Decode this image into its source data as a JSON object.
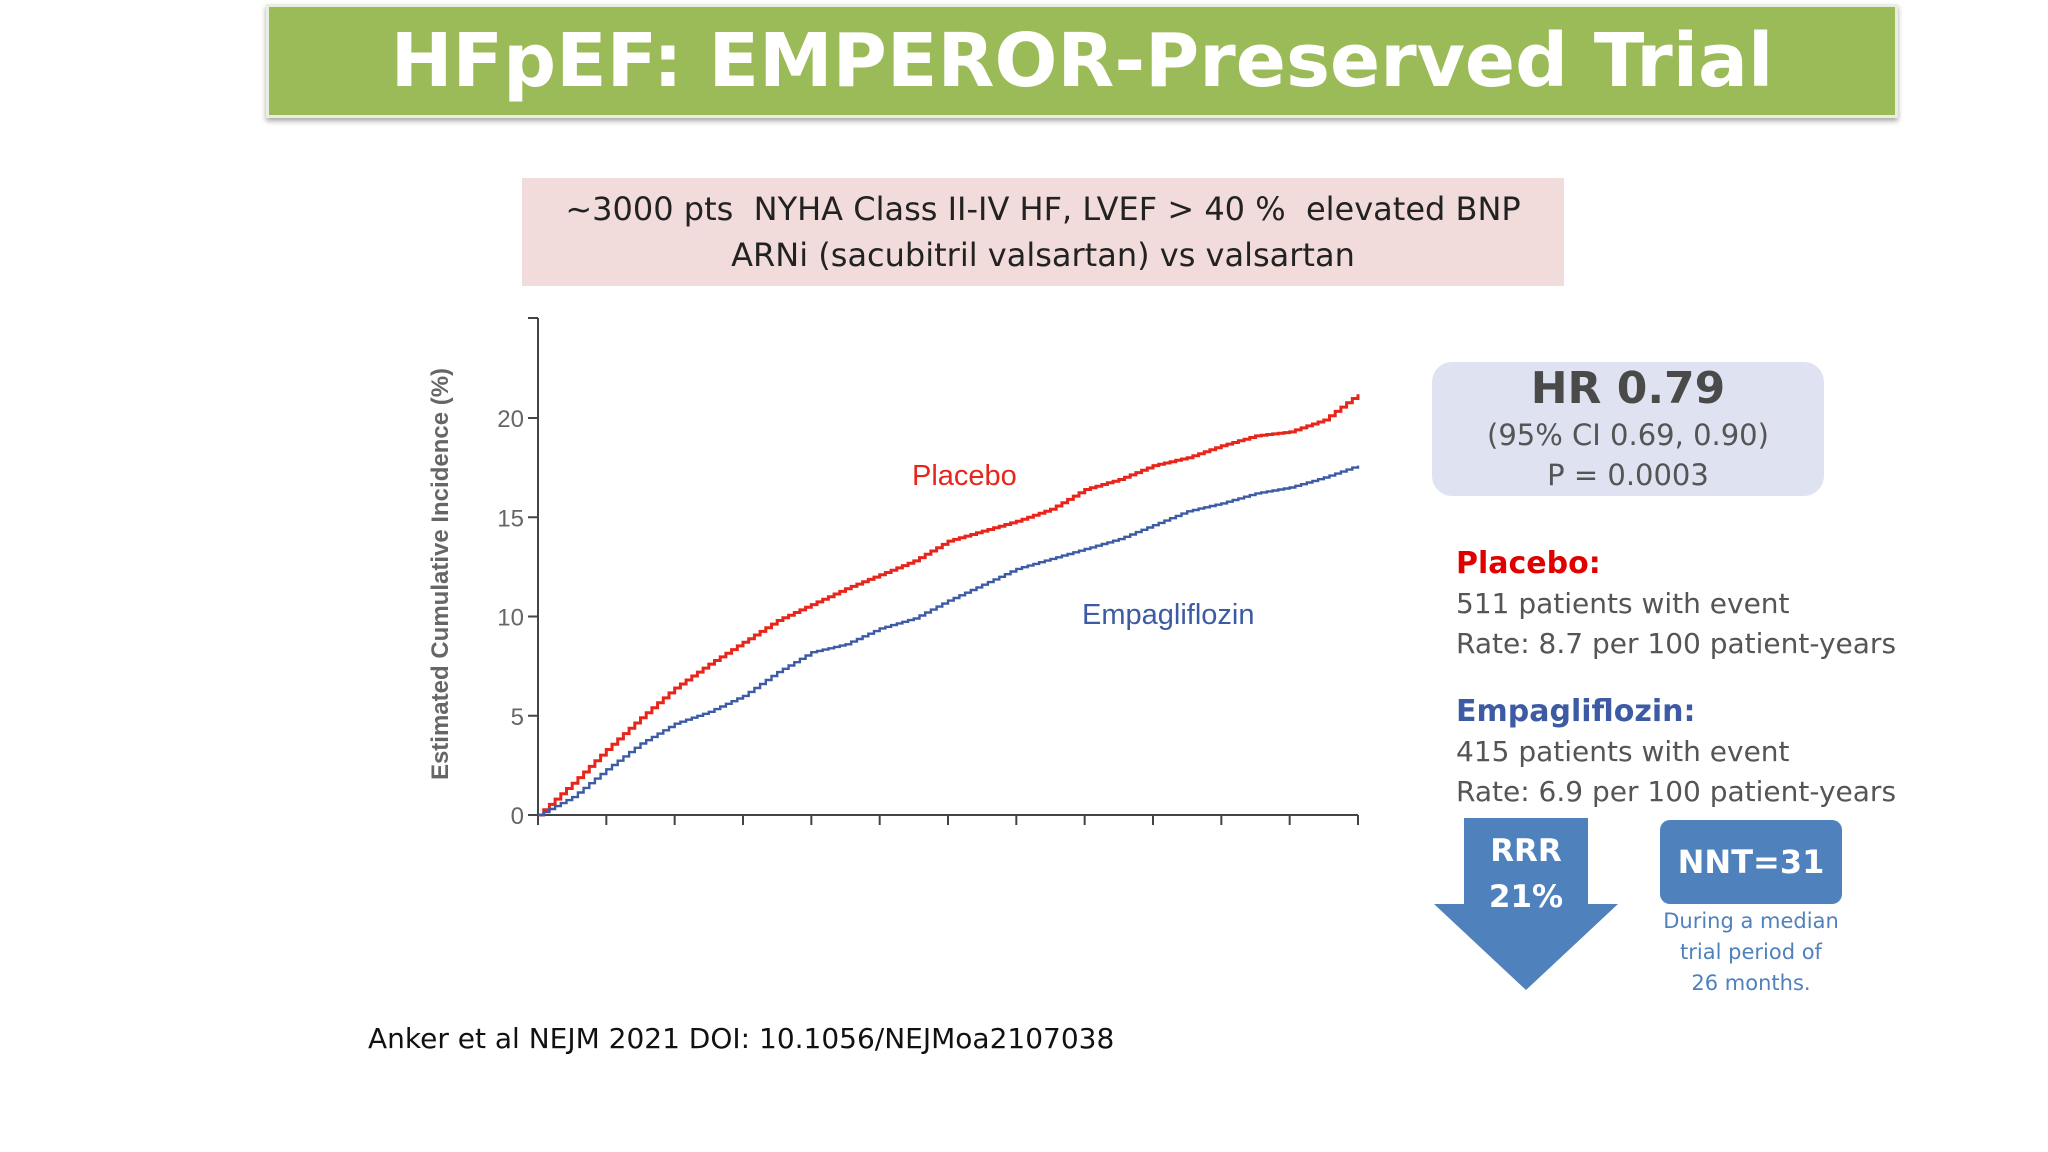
{
  "title": "HFpEF: EMPEROR-Preserved Trial",
  "criteria": {
    "line1": "~3000 pts  NYHA Class II-IV HF, LVEF > 40 %  elevated BNP",
    "line2": "ARNi (sacubitril valsartan) vs valsartan"
  },
  "chart_data": {
    "type": "line",
    "title": "",
    "xlabel": "",
    "ylabel": "Estimated Cumulative Incidence (%)",
    "ylim": [
      0,
      25
    ],
    "xlim": [
      0,
      12
    ],
    "y_ticks": [
      0,
      5,
      10,
      15,
      20
    ],
    "x_tick_count": 13,
    "grid": false,
    "series": [
      {
        "name": "Placebo",
        "color": "#e8251b",
        "x": [
          0,
          0.5,
          1,
          1.5,
          2,
          2.5,
          3,
          3.5,
          4,
          4.5,
          5,
          5.5,
          6,
          6.5,
          7,
          7.5,
          8,
          8.5,
          9,
          9.5,
          10,
          10.5,
          11,
          11.5,
          12
        ],
        "y": [
          0,
          1.6,
          3.3,
          4.9,
          6.4,
          7.6,
          8.7,
          9.8,
          10.6,
          11.4,
          12.1,
          12.8,
          13.8,
          14.3,
          14.8,
          15.4,
          16.4,
          16.9,
          17.6,
          18.0,
          18.6,
          19.1,
          19.3,
          19.9,
          21.2
        ]
      },
      {
        "name": "Empagliflozin",
        "color": "#3c5ba4",
        "x": [
          0,
          0.5,
          1,
          1.5,
          2,
          2.5,
          3,
          3.5,
          4,
          4.5,
          5,
          5.5,
          6,
          6.5,
          7,
          7.5,
          8,
          8.5,
          9,
          9.5,
          10,
          10.5,
          11,
          11.5,
          12
        ],
        "y": [
          0,
          0.9,
          2.3,
          3.6,
          4.6,
          5.2,
          6.0,
          7.2,
          8.2,
          8.6,
          9.4,
          9.9,
          10.8,
          11.6,
          12.4,
          12.9,
          13.4,
          13.9,
          14.6,
          15.3,
          15.7,
          16.2,
          16.5,
          17.0,
          17.6
        ]
      }
    ],
    "annotations": [
      {
        "text": "Placebo",
        "color": "#e8251b"
      },
      {
        "text": "Empagliflozin",
        "color": "#3c5ba4"
      }
    ]
  },
  "hr_box": {
    "hr": "HR 0.79",
    "ci": "(95% CI 0.69, 0.90)",
    "p": "P = 0.0003"
  },
  "placebo_stats": {
    "heading": "Placebo:",
    "events": "511 patients with event",
    "rate": "Rate: 8.7 per 100 patient-years",
    "color": "#e00000"
  },
  "empa_stats": {
    "heading": "Empagliflozin:",
    "events": "415 patients with event",
    "rate": "Rate: 6.9 per 100 patient-years",
    "color": "#3c5ba4"
  },
  "rrr": {
    "line1": "RRR",
    "line2": "21%",
    "color": "#4f81bd"
  },
  "nnt": {
    "label": "NNT=31",
    "note1": "During a median",
    "note2": "trial period of",
    "note3": "26 months."
  },
  "citation": "Anker et al NEJM 2021 DOI: 10.1056/NEJMoa2107038"
}
